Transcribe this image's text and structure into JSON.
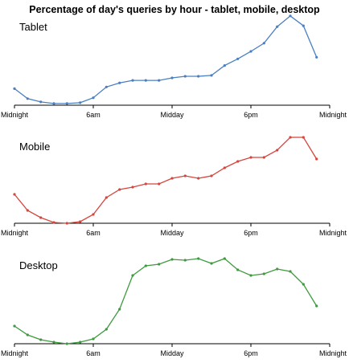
{
  "title": "Percentage of day's queries by hour - tablet, mobile, desktop",
  "chart_data": [
    {
      "type": "line",
      "title": "Tablet",
      "xlabel": "",
      "ylabel": "",
      "grid": false,
      "x": [
        0,
        1,
        2,
        3,
        4,
        5,
        6,
        7,
        8,
        9,
        10,
        11,
        12,
        13,
        14,
        15,
        16,
        17,
        18,
        19,
        20,
        21,
        22,
        23
      ],
      "tick_positions": [
        0,
        6,
        12,
        18,
        24
      ],
      "tick_labels": [
        "Midnight",
        "6am",
        "Midday",
        "6pm",
        "Midnight"
      ],
      "ylim": [
        0,
        100
      ],
      "series": [
        {
          "color": "#4a7fc1",
          "values": [
            20,
            8,
            4,
            2,
            2,
            3,
            9,
            22,
            27,
            30,
            30,
            30,
            33,
            35,
            35,
            36,
            48,
            56,
            65,
            75,
            95,
            108,
            96,
            58
          ]
        }
      ]
    },
    {
      "type": "line",
      "title": "Mobile",
      "xlabel": "",
      "ylabel": "",
      "grid": false,
      "x": [
        0,
        1,
        2,
        3,
        4,
        5,
        6,
        7,
        8,
        9,
        10,
        11,
        12,
        13,
        14,
        15,
        16,
        17,
        18,
        19,
        20,
        21,
        22,
        23
      ],
      "tick_positions": [
        0,
        6,
        12,
        18,
        24
      ],
      "tick_labels": [
        "Midnight",
        "6am",
        "Midday",
        "6pm",
        "Midnight"
      ],
      "ylim": [
        0,
        100
      ],
      "series": [
        {
          "color": "#d6453d",
          "values": [
            36,
            16,
            7,
            1,
            0,
            2,
            11,
            32,
            42,
            45,
            49,
            49,
            56,
            59,
            56,
            59,
            69,
            77,
            82,
            82,
            91,
            107,
            107,
            80
          ]
        }
      ]
    },
    {
      "type": "line",
      "title": "Desktop",
      "xlabel": "",
      "ylabel": "",
      "grid": false,
      "x": [
        0,
        1,
        2,
        3,
        4,
        5,
        6,
        7,
        8,
        9,
        10,
        11,
        12,
        13,
        14,
        15,
        16,
        17,
        18,
        19,
        20,
        21,
        22,
        23
      ],
      "tick_positions": [
        0,
        6,
        12,
        18,
        24
      ],
      "tick_labels": [
        "Midnight",
        "6am",
        "Midday",
        "6pm",
        "Midnight"
      ],
      "ylim": [
        0,
        100
      ],
      "series": [
        {
          "color": "#3e9a3e",
          "values": [
            22,
            11,
            5,
            2,
            0,
            2,
            6,
            18,
            43,
            85,
            97,
            99,
            105,
            104,
            106,
            100,
            106,
            92,
            85,
            87,
            93,
            90,
            74,
            47
          ]
        }
      ]
    }
  ]
}
